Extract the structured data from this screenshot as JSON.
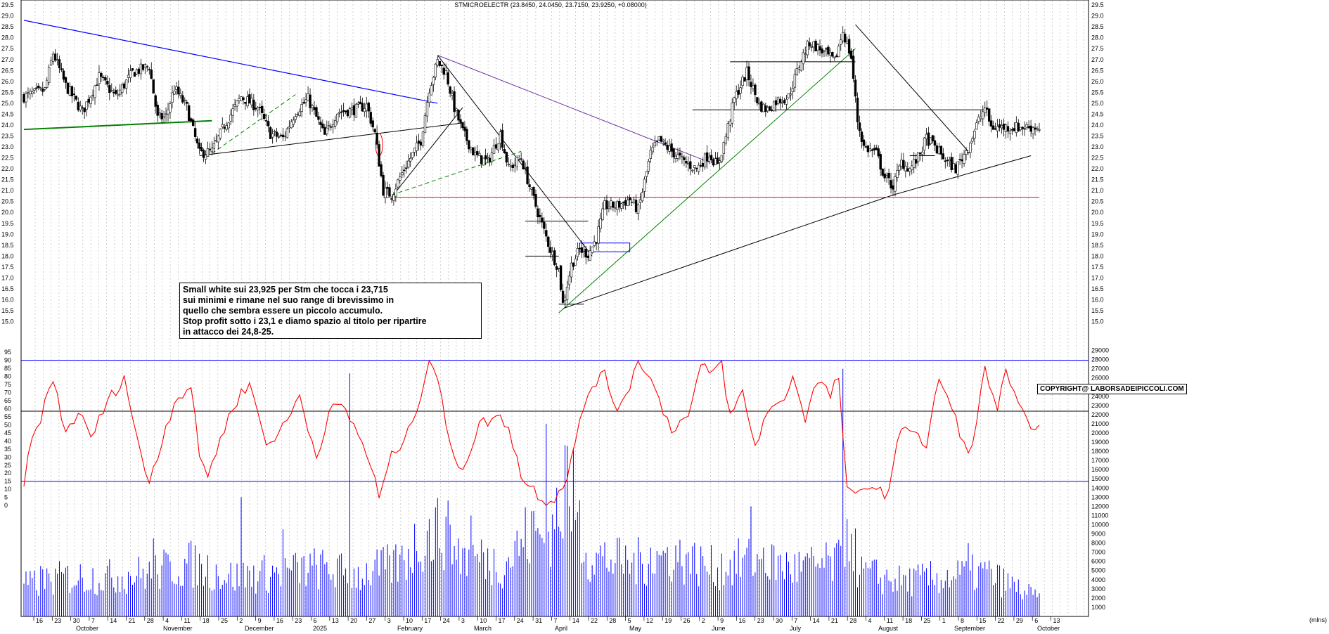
{
  "chart_data": {
    "type": "candlestick",
    "title": "STMICROELECTR (23.8450, 24.0450, 23.7150, 23.9250, +0.08000)",
    "price_axis": {
      "ylim": [
        14.6,
        29.6
      ],
      "ticks": [
        "29.5",
        "29.0",
        "28.5",
        "28.0",
        "27.5",
        "27.0",
        "26.5",
        "26.0",
        "25.5",
        "25.0",
        "24.5",
        "24.0",
        "23.5",
        "23.0",
        "22.5",
        "22.0",
        "21.5",
        "21.0",
        "20.5",
        "20.0",
        "19.5",
        "19.0",
        "18.5",
        "18.0",
        "17.5",
        "17.0",
        "16.5",
        "16.0",
        "15.5",
        "15.0"
      ]
    },
    "oscillator_axis": {
      "ylim": [
        -3,
        99
      ],
      "ticks": [
        "95",
        "90",
        "85",
        "80",
        "75",
        "70",
        "65",
        "60",
        "55",
        "50",
        "45",
        "40",
        "35",
        "30",
        "25",
        "20",
        "15",
        "10",
        "5",
        "0"
      ]
    },
    "volume_axis": {
      "ylim": [
        0,
        29500
      ],
      "ticks": [
        "29000",
        "28000",
        "27000",
        "26000",
        "25000",
        "24000",
        "23000",
        "22000",
        "21000",
        "20000",
        "19000",
        "18000",
        "17000",
        "16000",
        "15000",
        "14000",
        "13000",
        "12000",
        "11000",
        "10000",
        "9000",
        "8000",
        "7000",
        "6000",
        "5000",
        "4000",
        "3000",
        "2000",
        "1000"
      ],
      "unit": "(mlns)"
    },
    "date_axis": {
      "days": [
        "16",
        "23",
        "30",
        "7",
        "14",
        "21",
        "28",
        "4",
        "11",
        "18",
        "25",
        "2",
        "9",
        "16",
        "23",
        "6",
        "13",
        "20",
        "27",
        "3",
        "10",
        "17",
        "24",
        "3",
        "10",
        "17",
        "24",
        "31",
        "7",
        "14",
        "22",
        "28",
        "5",
        "12",
        "19",
        "26",
        "2",
        "9",
        "16",
        "23",
        "30",
        "7",
        "14",
        "21",
        "28",
        "4",
        "11",
        "18",
        "25",
        "1",
        "8",
        "15",
        "22",
        "29",
        "6",
        "13"
      ],
      "months": [
        "October",
        "November",
        "December",
        "2025",
        "February",
        "March",
        "April",
        "May",
        "June",
        "July",
        "August",
        "September",
        "October"
      ]
    },
    "price_series": {
      "name": "STMICROELECTR",
      "keypoints": [
        [
          0,
          25.3
        ],
        [
          10,
          25.6
        ],
        [
          14,
          27.3
        ],
        [
          20,
          25.8
        ],
        [
          28,
          24.6
        ],
        [
          36,
          26.2
        ],
        [
          44,
          25.3
        ],
        [
          52,
          26.4
        ],
        [
          60,
          26.7
        ],
        [
          64,
          24.3
        ],
        [
          68,
          24.4
        ],
        [
          72,
          25.7
        ],
        [
          78,
          24.8
        ],
        [
          84,
          22.7
        ],
        [
          90,
          22.8
        ],
        [
          96,
          24.0
        ],
        [
          104,
          25.3
        ],
        [
          112,
          24.8
        ],
        [
          118,
          23.6
        ],
        [
          124,
          23.4
        ],
        [
          130,
          24.6
        ],
        [
          136,
          25.2
        ],
        [
          144,
          23.5
        ],
        [
          150,
          24.6
        ],
        [
          158,
          24.7
        ],
        [
          164,
          24.9
        ],
        [
          168,
          23.6
        ],
        [
          172,
          21.0
        ],
        [
          176,
          20.8
        ],
        [
          182,
          22.0
        ],
        [
          190,
          23.3
        ],
        [
          194,
          25.7
        ],
        [
          198,
          26.9
        ],
        [
          202,
          26.4
        ],
        [
          206,
          24.8
        ],
        [
          210,
          23.7
        ],
        [
          216,
          22.6
        ],
        [
          222,
          22.3
        ],
        [
          228,
          23.6
        ],
        [
          232,
          22.0
        ],
        [
          238,
          22.5
        ],
        [
          242,
          21.2
        ],
        [
          246,
          20.0
        ],
        [
          252,
          18.3
        ],
        [
          256,
          17.4
        ],
        [
          258,
          15.8
        ],
        [
          262,
          17.6
        ],
        [
          266,
          18.3
        ],
        [
          270,
          18.1
        ],
        [
          274,
          18.8
        ],
        [
          278,
          20.3
        ],
        [
          284,
          20.3
        ],
        [
          290,
          20.6
        ],
        [
          294,
          20.1
        ],
        [
          300,
          22.7
        ],
        [
          304,
          23.3
        ],
        [
          310,
          22.8
        ],
        [
          316,
          22.3
        ],
        [
          322,
          22.0
        ],
        [
          328,
          22.7
        ],
        [
          332,
          22.1
        ],
        [
          336,
          23.5
        ],
        [
          340,
          25.2
        ],
        [
          346,
          26.4
        ],
        [
          352,
          24.9
        ],
        [
          356,
          24.7
        ],
        [
          360,
          25.1
        ],
        [
          366,
          25.3
        ],
        [
          372,
          27.0
        ],
        [
          376,
          27.8
        ],
        [
          382,
          27.4
        ],
        [
          388,
          26.9
        ],
        [
          392,
          28.3
        ],
        [
          396,
          27.1
        ],
        [
          399,
          24.2
        ],
        [
          402,
          23.0
        ],
        [
          408,
          22.7
        ],
        [
          412,
          21.6
        ],
        [
          416,
          21.2
        ],
        [
          420,
          22.3
        ],
        [
          424,
          22.0
        ],
        [
          428,
          22.5
        ],
        [
          432,
          23.4
        ],
        [
          436,
          23.0
        ],
        [
          442,
          22.3
        ],
        [
          446,
          22.0
        ],
        [
          452,
          23.0
        ],
        [
          456,
          24.0
        ],
        [
          460,
          24.8
        ],
        [
          463,
          23.9
        ]
      ],
      "last": {
        "open": 23.845,
        "high": 24.045,
        "low": 23.715,
        "close": 23.925,
        "change": 0.08
      }
    },
    "oscillator_series": {
      "color": "#ff0000",
      "keypoints": [
        [
          0,
          15
        ],
        [
          4,
          40
        ],
        [
          8,
          55
        ],
        [
          14,
          78
        ],
        [
          20,
          45
        ],
        [
          26,
          58
        ],
        [
          32,
          42
        ],
        [
          40,
          64
        ],
        [
          48,
          80
        ],
        [
          56,
          30
        ],
        [
          60,
          15
        ],
        [
          66,
          40
        ],
        [
          72,
          65
        ],
        [
          80,
          74
        ],
        [
          84,
          30
        ],
        [
          88,
          20
        ],
        [
          94,
          40
        ],
        [
          100,
          62
        ],
        [
          108,
          76
        ],
        [
          116,
          38
        ],
        [
          124,
          48
        ],
        [
          132,
          68
        ],
        [
          140,
          30
        ],
        [
          146,
          58
        ],
        [
          152,
          62
        ],
        [
          160,
          45
        ],
        [
          166,
          25
        ],
        [
          170,
          5
        ],
        [
          176,
          30
        ],
        [
          184,
          45
        ],
        [
          190,
          70
        ],
        [
          194,
          91
        ],
        [
          198,
          80
        ],
        [
          204,
          35
        ],
        [
          210,
          23
        ],
        [
          218,
          50
        ],
        [
          226,
          55
        ],
        [
          232,
          50
        ],
        [
          238,
          18
        ],
        [
          244,
          10
        ],
        [
          250,
          2
        ],
        [
          254,
          5
        ],
        [
          258,
          12
        ],
        [
          262,
          28
        ],
        [
          266,
          50
        ],
        [
          270,
          70
        ],
        [
          274,
          78
        ],
        [
          278,
          80
        ],
        [
          284,
          60
        ],
        [
          290,
          75
        ],
        [
          294,
          89
        ],
        [
          298,
          85
        ],
        [
          304,
          65
        ],
        [
          310,
          48
        ],
        [
          318,
          55
        ],
        [
          324,
          85
        ],
        [
          330,
          83
        ],
        [
          334,
          88
        ],
        [
          338,
          55
        ],
        [
          344,
          70
        ],
        [
          350,
          36
        ],
        [
          356,
          60
        ],
        [
          362,
          62
        ],
        [
          368,
          80
        ],
        [
          374,
          55
        ],
        [
          380,
          78
        ],
        [
          386,
          68
        ],
        [
          390,
          80
        ],
        [
          394,
          8
        ],
        [
          398,
          5
        ],
        [
          404,
          14
        ],
        [
          410,
          8
        ],
        [
          414,
          8
        ],
        [
          420,
          50
        ],
        [
          426,
          48
        ],
        [
          432,
          35
        ],
        [
          438,
          80
        ],
        [
          444,
          60
        ],
        [
          450,
          38
        ],
        [
          454,
          35
        ],
        [
          460,
          85
        ],
        [
          466,
          60
        ],
        [
          470,
          82
        ],
        [
          476,
          60
        ],
        [
          480,
          52
        ],
        [
          486,
          50
        ]
      ]
    },
    "volume_series": {
      "color": "#0000ff",
      "keypoints": [
        [
          0,
          3500
        ],
        [
          20,
          4500
        ],
        [
          40,
          4500
        ],
        [
          60,
          5000
        ],
        [
          80,
          6000
        ],
        [
          100,
          4500
        ],
        [
          120,
          5000
        ],
        [
          140,
          5500
        ],
        [
          160,
          4800
        ],
        [
          180,
          6000
        ],
        [
          190,
          9000
        ],
        [
          200,
          10000
        ],
        [
          210,
          7000
        ],
        [
          230,
          6000
        ],
        [
          240,
          9000
        ],
        [
          250,
          9000
        ],
        [
          260,
          16000
        ],
        [
          270,
          7000
        ],
        [
          290,
          6000
        ],
        [
          310,
          7000
        ],
        [
          330,
          5500
        ],
        [
          350,
          6500
        ],
        [
          370,
          5500
        ],
        [
          390,
          6000
        ],
        [
          394,
          11000
        ],
        [
          400,
          5000
        ],
        [
          420,
          4000
        ],
        [
          440,
          4500
        ],
        [
          460,
          5000
        ],
        [
          486,
          2000
        ]
      ],
      "spikes": [
        [
          8,
          5500
        ],
        [
          62,
          8500
        ],
        [
          104,
          13000
        ],
        [
          124,
          9500
        ],
        [
          156,
          26500
        ],
        [
          204,
          10000
        ],
        [
          214,
          11000
        ],
        [
          220,
          7000
        ],
        [
          244,
          11500
        ],
        [
          250,
          21000
        ],
        [
          254,
          9500
        ],
        [
          258,
          8500
        ],
        [
          261,
          12000
        ],
        [
          300,
          7500
        ],
        [
          318,
          7000
        ],
        [
          348,
          12000
        ],
        [
          354,
          7500
        ],
        [
          392,
          27000
        ],
        [
          396,
          9000
        ],
        [
          452,
          8000
        ]
      ]
    },
    "reference_lines": {
      "oscillator_levels": [
        90,
        15
      ],
      "support_level": 20.7,
      "resistance_level": 24.7
    },
    "grid": true
  },
  "annotation": {
    "lines": [
      "Small white sui 23,925 per  Stm che tocca i 23,715",
      "sui minimi e rimane nel suo range di brevissimo in",
      "quello che sembra essere un piccolo accumulo.",
      "Stop profit sotto i 23,1 e diamo spazio al titolo per ripartire",
      "in attacco dei 24,8-25."
    ]
  },
  "copyright": "COPYRIGHT@ LABORSADEIPICCOLI.COM",
  "colors": {
    "candle": "#000000",
    "trend_blue": "#0000ff",
    "trend_green": "#008000",
    "trend_purple": "#7030a0",
    "support_red": "#ff0000",
    "oscillator": "#ff0000",
    "volume": "#0000ff"
  }
}
